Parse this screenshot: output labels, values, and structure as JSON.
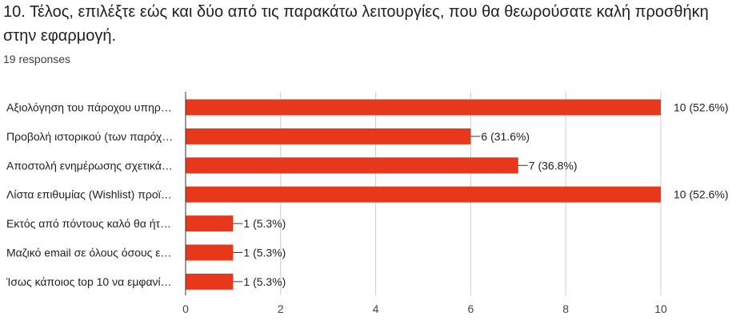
{
  "question": {
    "title": "10. Τέλος, επιλέξτε εώς και δύο από τις παρακάτω λειτουργίες, που θα θεωρούσατε καλή προσθήκη στην εφαρμογή.",
    "responses": "19 responses"
  },
  "colors": {
    "bar": "#e8381b",
    "axis": "#333333",
    "grid": "#cccccc"
  },
  "chart_data": {
    "type": "bar",
    "orientation": "horizontal",
    "categories": [
      "Αξιολόγηση του πάροχου υπηρ…",
      "Προβολή ιστορικού (των παρόχ…",
      "Αποστολή ενημέρωσης σχετικά…",
      "Λίστα επιθυμίας (Wishlist) προϊ…",
      "Εκτός από πόντους καλό θα ήτ…",
      "Μαζικό email σε όλους όσους ε…",
      "Ίσως κάποιος top 10 να εμφανί…"
    ],
    "values": [
      10,
      6,
      7,
      10,
      1,
      1,
      1
    ],
    "value_labels": [
      "10 (52.6%)",
      "6 (31.6%)",
      "7 (36.8%)",
      "10 (52.6%)",
      "1 (5.3%)",
      "1 (5.3%)",
      "1 (5.3%)"
    ],
    "xlim": [
      0,
      10
    ],
    "xticks": [
      "0",
      "2",
      "4",
      "6",
      "8",
      "10"
    ],
    "grid": true
  }
}
